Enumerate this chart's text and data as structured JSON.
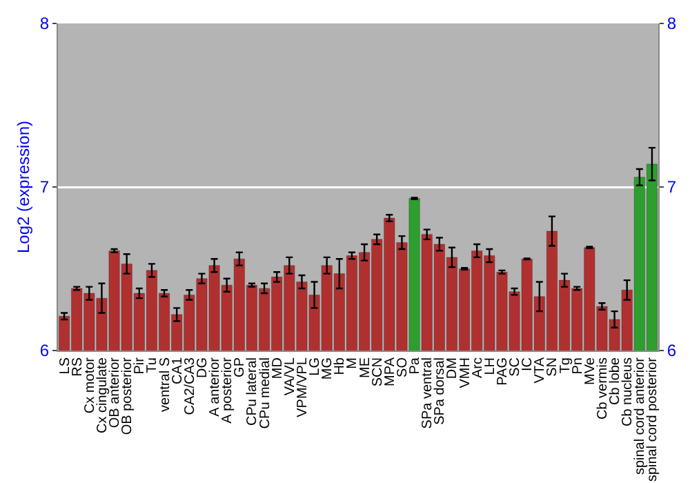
{
  "chart_data": {
    "type": "bar",
    "ylabel": "Log2 (expression)",
    "categories": [
      "LS",
      "RS",
      "Cx motor",
      "Cx cingulate",
      "OB anterior",
      "OB posterior",
      "Pir",
      "Tu",
      "ventral S",
      "CA1",
      "CA2/CA3",
      "DG",
      "A anterior",
      "A posterior",
      "GP",
      "CPu lateral",
      "CPu medial",
      "MD",
      "VA/VL",
      "VPM/VPL",
      "LG",
      "MG",
      "Hb",
      "M",
      "ME",
      "SCN",
      "MPA",
      "SO",
      "Pa",
      "SPa ventral",
      "SPa dorsal",
      "DM",
      "VMH",
      "Arc",
      "LH",
      "PAG",
      "SC",
      "IC",
      "VTA",
      "SN",
      "Tg",
      "Pn",
      "MVe",
      "Cb vermis",
      "Cb lobe",
      "Cb nucleus",
      "spinal cord anterior",
      "spinal cord posterior"
    ],
    "values": [
      6.21,
      6.38,
      6.35,
      6.32,
      6.61,
      6.53,
      6.35,
      6.49,
      6.35,
      6.22,
      6.34,
      6.44,
      6.52,
      6.4,
      6.56,
      6.4,
      6.38,
      6.45,
      6.52,
      6.42,
      6.34,
      6.52,
      6.47,
      6.58,
      6.6,
      6.68,
      6.81,
      6.66,
      6.93,
      6.71,
      6.65,
      6.57,
      6.5,
      6.61,
      6.58,
      6.48,
      6.36,
      6.56,
      6.33,
      6.73,
      6.43,
      6.38,
      6.63,
      6.27,
      6.19,
      6.37,
      7.06,
      7.14
    ],
    "errors": [
      0.02,
      0.01,
      0.04,
      0.09,
      0.01,
      0.06,
      0.03,
      0.04,
      0.02,
      0.04,
      0.03,
      0.03,
      0.04,
      0.04,
      0.04,
      0.01,
      0.03,
      0.03,
      0.05,
      0.04,
      0.08,
      0.05,
      0.09,
      0.02,
      0.05,
      0.03,
      0.02,
      0.04,
      0.005,
      0.03,
      0.04,
      0.06,
      0.005,
      0.04,
      0.04,
      0.01,
      0.02,
      0.003,
      0.09,
      0.09,
      0.04,
      0.01,
      0.005,
      0.02,
      0.05,
      0.06,
      0.05,
      0.1
    ],
    "colors": [
      "#b03030",
      "#b03030",
      "#b03030",
      "#b03030",
      "#b03030",
      "#b03030",
      "#b03030",
      "#b03030",
      "#b03030",
      "#b03030",
      "#b03030",
      "#b03030",
      "#b03030",
      "#b03030",
      "#b03030",
      "#b03030",
      "#b03030",
      "#b03030",
      "#b03030",
      "#b03030",
      "#b03030",
      "#b03030",
      "#b03030",
      "#b03030",
      "#b03030",
      "#b03030",
      "#b03030",
      "#b03030",
      "#2e9e2e",
      "#b03030",
      "#b03030",
      "#b03030",
      "#b03030",
      "#b03030",
      "#b03030",
      "#b03030",
      "#b03030",
      "#b03030",
      "#b03030",
      "#b03030",
      "#b03030",
      "#b03030",
      "#b03030",
      "#b03030",
      "#b03030",
      "#b03030",
      "#2e9e2e",
      "#2e9e2e"
    ],
    "ylim": [
      6,
      8
    ],
    "yticks": [
      6,
      7,
      8
    ],
    "y2lim": [
      6,
      8
    ],
    "y2ticks": [
      6,
      7,
      8
    ],
    "grid": "y"
  }
}
